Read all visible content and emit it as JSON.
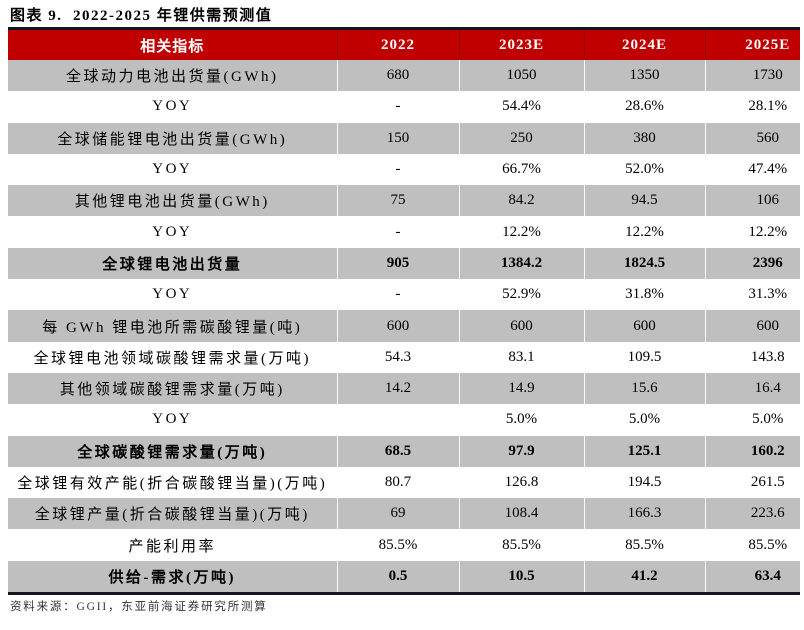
{
  "title": "图表 9.  2022-2025 年锂供需预测值",
  "table": {
    "columns": [
      "相关指标",
      "2022",
      "2023E",
      "2024E",
      "2025E"
    ],
    "rows": [
      {
        "label": "全球动力电池出货量(GWh)",
        "values": [
          "680",
          "1050",
          "1350",
          "1730"
        ],
        "is_summary": false
      },
      {
        "label": "YOY",
        "values": [
          "-",
          "54.4%",
          "28.6%",
          "28.1%"
        ],
        "is_summary": false
      },
      {
        "label": "全球储能锂电池出货量(GWh)",
        "values": [
          "150",
          "250",
          "380",
          "560"
        ],
        "is_summary": false
      },
      {
        "label": "YOY",
        "values": [
          "-",
          "66.7%",
          "52.0%",
          "47.4%"
        ],
        "is_summary": false
      },
      {
        "label": "其他锂电池出货量(GWh)",
        "values": [
          "75",
          "84.2",
          "94.5",
          "106"
        ],
        "is_summary": false
      },
      {
        "label": "YOY",
        "values": [
          "-",
          "12.2%",
          "12.2%",
          "12.2%"
        ],
        "is_summary": false
      },
      {
        "label": "全球锂电池出货量",
        "values": [
          "905",
          "1384.2",
          "1824.5",
          "2396"
        ],
        "is_summary": true
      },
      {
        "label": "YOY",
        "values": [
          "-",
          "52.9%",
          "31.8%",
          "31.3%"
        ],
        "is_summary": false
      },
      {
        "label": "每 GWh 锂电池所需碳酸锂量(吨)",
        "values": [
          "600",
          "600",
          "600",
          "600"
        ],
        "is_summary": false
      },
      {
        "label": "全球锂电池领域碳酸锂需求量(万吨)",
        "values": [
          "54.3",
          "83.1",
          "109.5",
          "143.8"
        ],
        "is_summary": false
      },
      {
        "label": "其他领域碳酸锂需求量(万吨)",
        "values": [
          "14.2",
          "14.9",
          "15.6",
          "16.4"
        ],
        "is_summary": false
      },
      {
        "label": "YOY",
        "values": [
          "",
          "5.0%",
          "5.0%",
          "5.0%"
        ],
        "is_summary": false
      },
      {
        "label": "全球碳酸锂需求量(万吨)",
        "values": [
          "68.5",
          "97.9",
          "125.1",
          "160.2"
        ],
        "is_summary": true
      },
      {
        "label": "全球锂有效产能(折合碳酸锂当量)(万吨)",
        "values": [
          "80.7",
          "126.8",
          "194.5",
          "261.5"
        ],
        "is_summary": false
      },
      {
        "label": "全球锂产量(折合碳酸锂当量)(万吨)",
        "values": [
          "69",
          "108.4",
          "166.3",
          "223.6"
        ],
        "is_summary": false
      },
      {
        "label": "产能利用率",
        "values": [
          "85.5%",
          "85.5%",
          "85.5%",
          "85.5%"
        ],
        "is_summary": false
      },
      {
        "label": "供给-需求(万吨)",
        "values": [
          "0.5",
          "10.5",
          "41.2",
          "63.4"
        ],
        "is_summary": true
      }
    ]
  },
  "footer": {
    "source": "资料来源：GGII，东亚前海证券研究所测算"
  },
  "colors": {
    "header_bg": "#c00000",
    "header_separator": "#980000",
    "shaded_row_bg": "#bfbfbf",
    "frame_border": "#15151f",
    "header_text": "#ffffff",
    "body_text": "#000000",
    "footer_text": "#333333"
  }
}
